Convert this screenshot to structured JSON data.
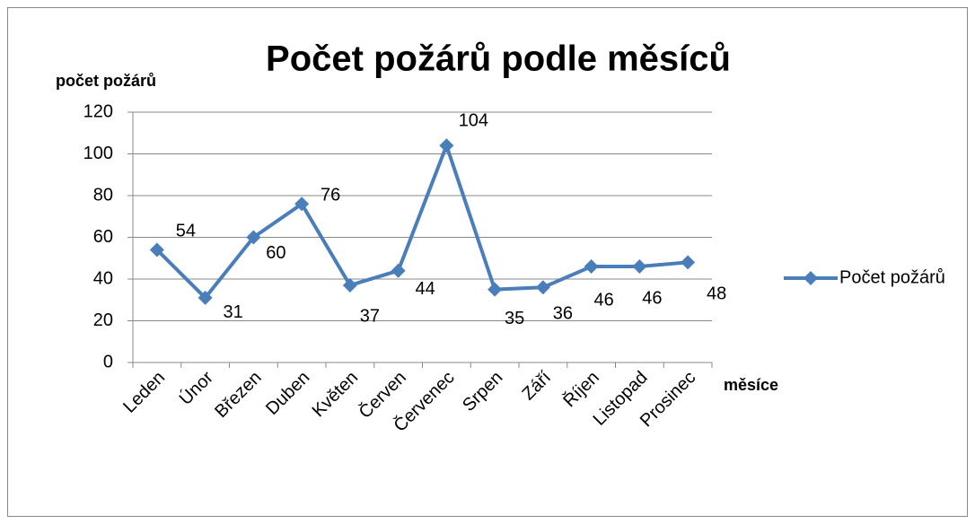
{
  "chart_data": {
    "type": "line",
    "title": "Počet požárů podle měsíců",
    "y_label": "počet požárů",
    "x_label": "měsíce",
    "categories": [
      "Leden",
      "Únor",
      "Březen",
      "Duben",
      "Květen",
      "Červen",
      "Červenec",
      "Srpen",
      "Září",
      "Říjen",
      "Listopad",
      "Prosinec"
    ],
    "series": [
      {
        "name": "Počet požárů",
        "color": "#4a7ebb",
        "values": [
          54,
          31,
          60,
          76,
          37,
          44,
          104,
          35,
          36,
          46,
          46,
          48
        ]
      }
    ],
    "ylim": [
      0,
      120
    ],
    "yticks": [
      0,
      20,
      40,
      60,
      80,
      100,
      120
    ],
    "grid": true,
    "legend": "right"
  }
}
